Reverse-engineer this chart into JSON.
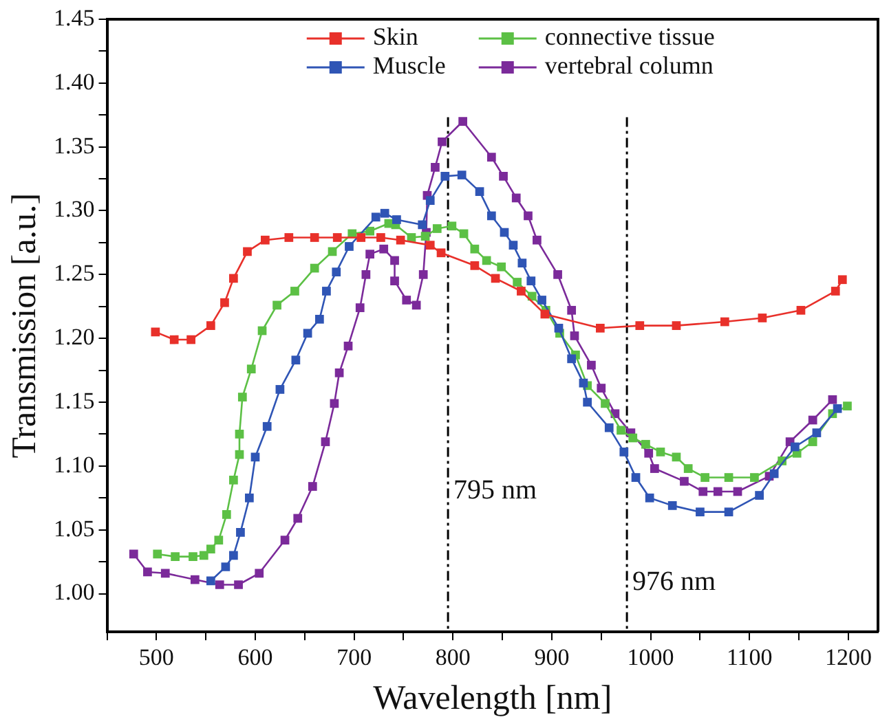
{
  "chart_data": {
    "type": "line",
    "xlabel": "Wavelength [nm]",
    "ylabel": "Transmission [a.u.]",
    "xlim": [
      450,
      1230
    ],
    "ylim": [
      0.97,
      1.45
    ],
    "xticks": [
      {
        "value": 450,
        "label": null
      },
      500,
      {
        "value": 550,
        "label": null
      },
      600,
      {
        "value": 650,
        "label": null
      },
      700,
      {
        "value": 750,
        "label": null
      },
      800,
      {
        "value": 850,
        "label": null
      },
      900,
      {
        "value": 950,
        "label": null
      },
      1000,
      {
        "value": 1050,
        "label": null
      },
      1100,
      {
        "value": 1150,
        "label": null
      },
      1200
    ],
    "yticks": [
      {
        "value": 1,
        "label": "1.00"
      },
      {
        "value": 1.025,
        "label": null
      },
      {
        "value": 1.05,
        "label": "1.05"
      },
      {
        "value": 1.075,
        "label": null
      },
      {
        "value": 1.1,
        "label": "1.10"
      },
      {
        "value": 1.125,
        "label": null
      },
      {
        "value": 1.15,
        "label": "1.15"
      },
      {
        "value": 1.175,
        "label": null
      },
      {
        "value": 1.2,
        "label": "1.20"
      },
      {
        "value": 1.225,
        "label": null
      },
      {
        "value": 1.25,
        "label": "1.25"
      },
      {
        "value": 1.275,
        "label": null
      },
      {
        "value": 1.3,
        "label": "1.30"
      },
      {
        "value": 1.325,
        "label": null
      },
      {
        "value": 1.35,
        "label": "1.35"
      },
      {
        "value": 1.375,
        "label": null
      },
      {
        "value": 1.4,
        "label": "1.40"
      },
      {
        "value": 1.425,
        "label": null
      },
      {
        "value": 1.45,
        "label": "1.45"
      }
    ],
    "grid": false,
    "legend": "top",
    "marker": "square",
    "ref_lines": [
      {
        "axis": "x",
        "value": 795,
        "label": "795 nm"
      },
      {
        "axis": "x",
        "value": 976,
        "label": "976 nm"
      }
    ],
    "series": [
      {
        "name": "Skin",
        "color": "#e8302a",
        "x": [
          499,
          518,
          535,
          555,
          569,
          578,
          592,
          610,
          634,
          660,
          683,
          707,
          727,
          747,
          777,
          788,
          822,
          843,
          869,
          893,
          949,
          989,
          1026,
          1075,
          1113,
          1152,
          1187,
          1194
        ],
        "values": [
          1.205,
          1.199,
          1.199,
          1.21,
          1.228,
          1.247,
          1.268,
          1.277,
          1.279,
          1.279,
          1.279,
          1.279,
          1.279,
          1.277,
          1.273,
          1.267,
          1.257,
          1.247,
          1.237,
          1.219,
          1.208,
          1.21,
          1.21,
          1.213,
          1.216,
          1.222,
          1.237,
          1.246
        ]
      },
      {
        "name": "Muscle",
        "color": "#2f55b5",
        "x": [
          555,
          570,
          578,
          585,
          594,
          600,
          612,
          625,
          641,
          653,
          665,
          672,
          682,
          695,
          722,
          731,
          743,
          769,
          777,
          792,
          809,
          827,
          839,
          852,
          861,
          870,
          879,
          890,
          907,
          920,
          932,
          936,
          958,
          973,
          985,
          999,
          1022,
          1050,
          1079,
          1110,
          1125,
          1146,
          1168,
          1189
        ],
        "values": [
          1.01,
          1.021,
          1.03,
          1.048,
          1.075,
          1.107,
          1.131,
          1.16,
          1.183,
          1.204,
          1.215,
          1.237,
          1.252,
          1.272,
          1.295,
          1.298,
          1.293,
          1.289,
          1.308,
          1.327,
          1.328,
          1.315,
          1.296,
          1.283,
          1.273,
          1.259,
          1.245,
          1.23,
          1.208,
          1.184,
          1.165,
          1.15,
          1.13,
          1.111,
          1.091,
          1.075,
          1.069,
          1.064,
          1.064,
          1.077,
          1.094,
          1.115,
          1.126,
          1.145
        ]
      },
      {
        "name": "connective tissue",
        "color": "#5cc045",
        "x": [
          501,
          519,
          537,
          548,
          555,
          563,
          571,
          578,
          584,
          584,
          587,
          596,
          607,
          622,
          640,
          660,
          678,
          698,
          716,
          735,
          742,
          758,
          772,
          784,
          799,
          811,
          822,
          834,
          849,
          865,
          880,
          894,
          908,
          924,
          936,
          954,
          970,
          982,
          995,
          1010,
          1026,
          1038,
          1055,
          1079,
          1105,
          1133,
          1148,
          1164,
          1184,
          1199
        ],
        "values": [
          1.031,
          1.029,
          1.029,
          1.03,
          1.035,
          1.042,
          1.062,
          1.089,
          1.109,
          1.125,
          1.154,
          1.176,
          1.206,
          1.226,
          1.237,
          1.255,
          1.268,
          1.282,
          1.284,
          1.29,
          1.289,
          1.279,
          1.28,
          1.286,
          1.288,
          1.282,
          1.27,
          1.261,
          1.256,
          1.244,
          1.233,
          1.222,
          1.204,
          1.187,
          1.163,
          1.149,
          1.128,
          1.122,
          1.117,
          1.111,
          1.107,
          1.098,
          1.091,
          1.091,
          1.091,
          1.104,
          1.11,
          1.119,
          1.141,
          1.147
        ]
      },
      {
        "name": "vertebral column",
        "color": "#7b2a9a",
        "x": [
          477,
          491,
          509,
          539,
          564,
          583,
          604,
          630,
          643,
          658,
          671,
          680,
          685,
          694,
          706,
          712,
          716,
          730,
          741,
          741,
          753,
          763,
          770,
          773,
          774,
          782,
          789,
          810,
          839,
          851,
          864,
          876,
          885,
          906,
          920,
          923,
          940,
          950,
          964,
          980,
          998,
          1004,
          1034,
          1053,
          1068,
          1088,
          1120,
          1141,
          1164,
          1184
        ],
        "values": [
          1.031,
          1.017,
          1.016,
          1.011,
          1.007,
          1.007,
          1.016,
          1.042,
          1.059,
          1.084,
          1.119,
          1.149,
          1.173,
          1.194,
          1.224,
          1.25,
          1.266,
          1.27,
          1.261,
          1.245,
          1.23,
          1.226,
          1.25,
          1.283,
          1.312,
          1.334,
          1.354,
          1.37,
          1.342,
          1.327,
          1.31,
          1.296,
          1.277,
          1.25,
          1.222,
          1.202,
          1.179,
          1.161,
          1.141,
          1.126,
          1.11,
          1.098,
          1.088,
          1.08,
          1.08,
          1.08,
          1.092,
          1.119,
          1.136,
          1.152
        ]
      }
    ]
  }
}
